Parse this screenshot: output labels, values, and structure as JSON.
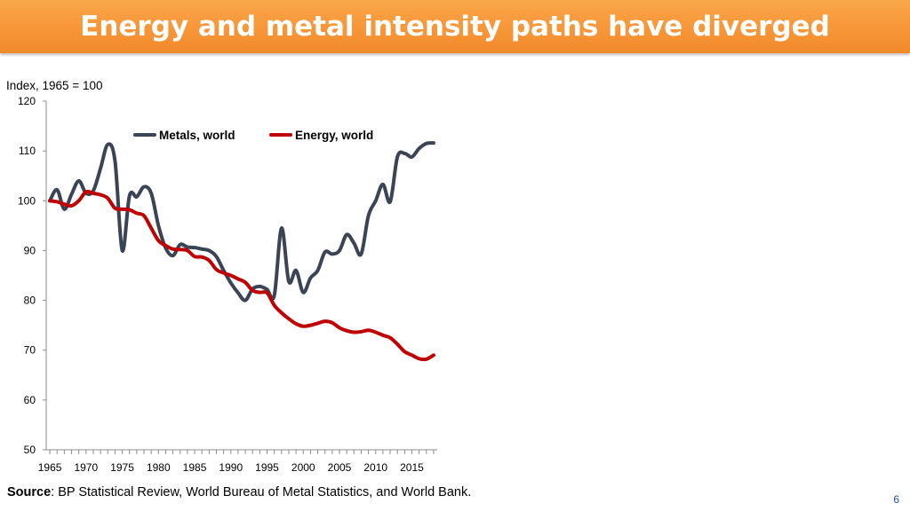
{
  "slide": {
    "title": "Energy and metal intensity paths have diverged",
    "source_label": "Source",
    "source_text": ": BP Statistical Review, World Bureau of Metal Statistics, and World Bank.",
    "page_number": "6"
  },
  "colors": {
    "header": "#f79638",
    "metals": "#3a4454",
    "energy": "#c00000"
  },
  "chart_data": {
    "type": "line",
    "title": "",
    "ylabel": "Index, 1965 = 100",
    "xlabel": "",
    "ylim": [
      50,
      120
    ],
    "yticks": [
      50,
      60,
      70,
      80,
      90,
      100,
      110,
      120
    ],
    "xlim": [
      1964.5,
      2018.5
    ],
    "xtick_labels": [
      1965,
      1970,
      1975,
      1980,
      1985,
      1990,
      1995,
      2000,
      2005,
      2010,
      2015
    ],
    "legend": "top-center",
    "x": [
      1965,
      1966,
      1967,
      1968,
      1969,
      1970,
      1971,
      1972,
      1973,
      1974,
      1975,
      1976,
      1977,
      1978,
      1979,
      1980,
      1981,
      1982,
      1983,
      1984,
      1985,
      1986,
      1987,
      1988,
      1989,
      1990,
      1991,
      1992,
      1993,
      1994,
      1995,
      1996,
      1997,
      1998,
      1999,
      2000,
      2001,
      2002,
      2003,
      2004,
      2005,
      2006,
      2007,
      2008,
      2009,
      2010,
      2011,
      2012,
      2013,
      2014,
      2015,
      2016,
      2017,
      2018
    ],
    "series": [
      {
        "name": "Metals, world",
        "values": [
          100,
          102.2,
          98.3,
          101.3,
          104,
          101.5,
          102,
          106.5,
          111.3,
          108,
          90,
          101,
          100.8,
          102.8,
          101.5,
          95,
          90.5,
          89,
          91.2,
          90.7,
          90.6,
          90.3,
          90,
          88.8,
          86,
          83.5,
          81.5,
          80,
          82.3,
          82.8,
          82.2,
          81,
          94.5,
          83.8,
          86,
          81.6,
          84.5,
          86,
          89.7,
          89.3,
          90,
          93.2,
          91.5,
          89.3,
          97,
          100,
          103.3,
          99.8,
          108.8,
          109.5,
          108.8,
          110.5,
          111.5,
          111.6
        ]
      },
      {
        "name": "Energy, world",
        "values": [
          100,
          99.8,
          99.3,
          99,
          100,
          101.8,
          101.5,
          101.2,
          100.5,
          98.5,
          98.3,
          98.2,
          97.5,
          97,
          94.5,
          92,
          91,
          90.3,
          90.2,
          90,
          88.8,
          88.7,
          88,
          86.2,
          85.5,
          85,
          84.3,
          83.6,
          82,
          81.6,
          81.5,
          79,
          77.5,
          76.3,
          75.3,
          74.8,
          75,
          75.4,
          75.8,
          75.5,
          74.5,
          73.9,
          73.6,
          73.7,
          74,
          73.6,
          73,
          72.5,
          71.2,
          69.7,
          69,
          68.3,
          68.2,
          69
        ]
      }
    ]
  }
}
